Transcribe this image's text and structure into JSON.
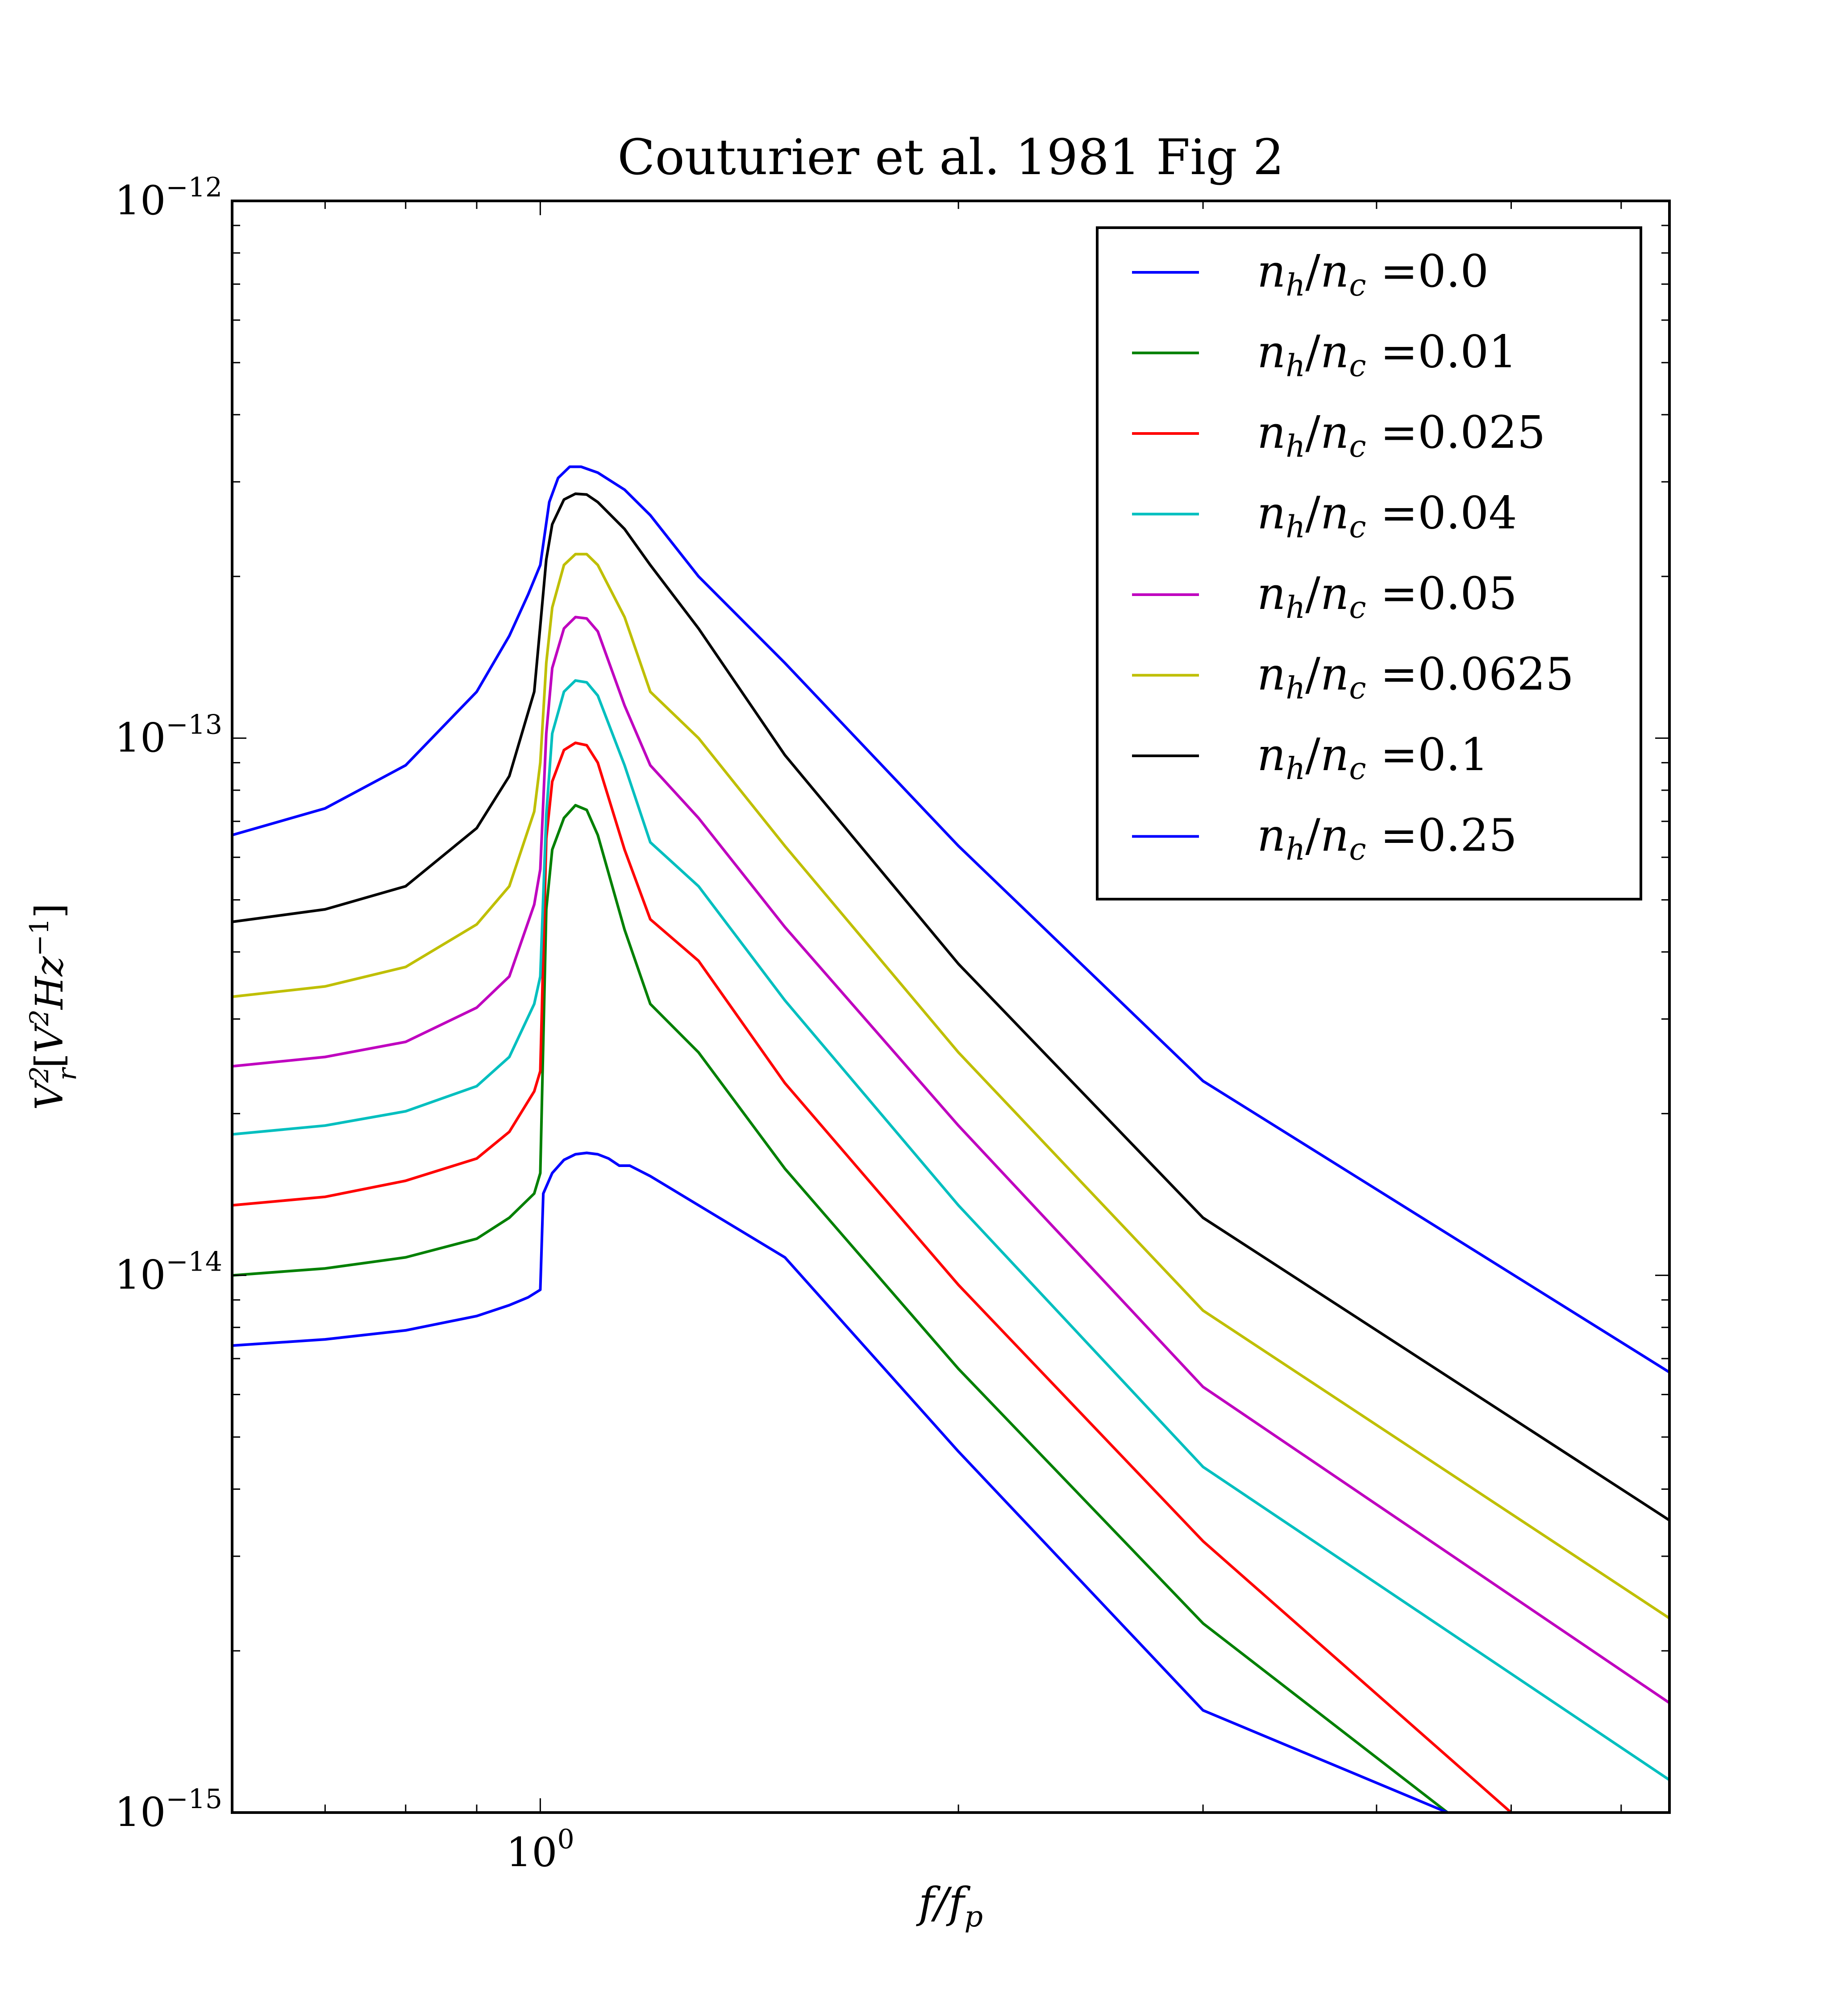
{
  "chart_data": {
    "type": "line",
    "title": "Couturier et al. 1981 Fig 2",
    "xlabel": "f/f_p",
    "ylabel": "V_r^2 [V^2 Hz^-1]",
    "xscale": "log",
    "yscale": "log",
    "xlim": [
      0.6,
      6.5
    ],
    "ylim": [
      1e-15,
      1e-12
    ],
    "xticks": [
      {
        "value": 1,
        "label": "10^0"
      }
    ],
    "yticks": [
      {
        "value": 1e-15,
        "label": "10^-15"
      },
      {
        "value": 1e-14,
        "label": "10^-14"
      },
      {
        "value": 1e-13,
        "label": "10^-13"
      },
      {
        "value": 1e-12,
        "label": "10^-12"
      }
    ],
    "grid": false,
    "legend_position": "upper-right",
    "series": [
      {
        "name": "n_h/n_c =0.0",
        "color": "#0000ff",
        "x": [
          0.6,
          0.7,
          0.8,
          0.9,
          0.95,
          0.98,
          1.0,
          1.015,
          1.03,
          1.05,
          1.07,
          1.1,
          1.15,
          1.2,
          1.3,
          1.5,
          2.0,
          3.0,
          6.5
        ],
        "y": [
          6.6e-14,
          7.4e-14,
          8.9e-14,
          1.22e-13,
          1.55e-13,
          1.85e-13,
          2.1e-13,
          2.75e-13,
          3.05e-13,
          3.2e-13,
          3.2e-13,
          3.12e-13,
          2.9e-13,
          2.6e-13,
          2e-13,
          1.38e-13,
          6.3e-14,
          2.3e-14,
          6.6e-15
        ]
      },
      {
        "name": "n_h/n_c =0.01",
        "color": "#008000",
        "x": [
          0.6,
          0.7,
          0.8,
          0.9,
          0.95,
          0.99,
          1.0,
          1.01,
          1.02,
          1.04,
          1.06,
          1.08,
          1.1,
          1.15,
          1.2,
          1.3,
          1.5,
          2.0,
          3.0,
          4.5
        ],
        "y": [
          1e-14,
          1.03e-14,
          1.08e-14,
          1.17e-14,
          1.28e-14,
          1.42e-14,
          1.55e-14,
          4.8e-14,
          6.2e-14,
          7.1e-14,
          7.5e-14,
          7.35e-14,
          6.6e-14,
          4.4e-14,
          3.2e-14,
          2.6e-14,
          1.58e-14,
          6.7e-15,
          2.25e-15,
          1e-15
        ]
      },
      {
        "name": "n_h/n_c =0.025",
        "color": "#ff0000",
        "x": [
          0.6,
          0.7,
          0.8,
          0.9,
          0.95,
          0.99,
          1.0,
          1.01,
          1.02,
          1.04,
          1.06,
          1.08,
          1.1,
          1.15,
          1.2,
          1.3,
          1.5,
          2.0,
          3.0,
          5.0
        ],
        "y": [
          1.35e-14,
          1.4e-14,
          1.5e-14,
          1.65e-14,
          1.85e-14,
          2.2e-14,
          2.4e-14,
          6.5e-14,
          8.3e-14,
          9.5e-14,
          9.8e-14,
          9.7e-14,
          9e-14,
          6.2e-14,
          4.6e-14,
          3.85e-14,
          2.28e-14,
          9.6e-15,
          3.2e-15,
          1e-15
        ]
      },
      {
        "name": "n_h/n_c =0.04",
        "color": "#00bfbf",
        "x": [
          0.6,
          0.7,
          0.8,
          0.9,
          0.95,
          0.99,
          1.0,
          1.01,
          1.02,
          1.04,
          1.06,
          1.08,
          1.1,
          1.15,
          1.2,
          1.3,
          1.5,
          2.0,
          3.0,
          6.5
        ],
        "y": [
          1.83e-14,
          1.9e-14,
          2.02e-14,
          2.25e-14,
          2.55e-14,
          3.2e-14,
          3.6e-14,
          7.2e-14,
          1.02e-13,
          1.22e-13,
          1.28e-13,
          1.27e-13,
          1.2e-13,
          8.9e-14,
          6.4e-14,
          5.3e-14,
          3.25e-14,
          1.35e-14,
          4.4e-15,
          1.15e-15
        ]
      },
      {
        "name": "n_h/n_c =0.05",
        "color": "#bf00bf",
        "x": [
          0.6,
          0.7,
          0.8,
          0.9,
          0.95,
          0.99,
          1.0,
          1.01,
          1.02,
          1.04,
          1.06,
          1.08,
          1.1,
          1.15,
          1.2,
          1.3,
          1.5,
          2.0,
          3.0,
          6.5
        ],
        "y": [
          2.45e-14,
          2.55e-14,
          2.72e-14,
          3.15e-14,
          3.6e-14,
          4.9e-14,
          5.7e-14,
          1.02e-13,
          1.35e-13,
          1.6e-13,
          1.68e-13,
          1.67e-13,
          1.58e-13,
          1.15e-13,
          8.9e-14,
          7.1e-14,
          4.45e-14,
          1.9e-14,
          6.2e-15,
          1.6e-15
        ]
      },
      {
        "name": "n_h/n_c =0.0625",
        "color": "#bfbf00",
        "x": [
          0.6,
          0.7,
          0.8,
          0.9,
          0.95,
          0.99,
          1.0,
          1.01,
          1.02,
          1.04,
          1.06,
          1.08,
          1.1,
          1.15,
          1.2,
          1.3,
          1.5,
          2.0,
          3.0,
          6.5
        ],
        "y": [
          3.3e-14,
          3.45e-14,
          3.75e-14,
          4.5e-14,
          5.3e-14,
          7.3e-14,
          9e-14,
          1.38e-13,
          1.75e-13,
          2.1e-13,
          2.2e-13,
          2.2e-13,
          2.1e-13,
          1.68e-13,
          1.22e-13,
          1e-13,
          6.3e-14,
          2.6e-14,
          8.6e-15,
          2.3e-15
        ]
      },
      {
        "name": "n_h/n_c =0.1",
        "color": "#000000",
        "x": [
          0.6,
          0.7,
          0.8,
          0.9,
          0.95,
          0.99,
          1.0,
          1.01,
          1.02,
          1.04,
          1.06,
          1.08,
          1.1,
          1.15,
          1.2,
          1.3,
          1.5,
          2.0,
          3.0,
          6.5
        ],
        "y": [
          4.55e-14,
          4.8e-14,
          5.3e-14,
          6.8e-14,
          8.5e-14,
          1.22e-13,
          1.62e-13,
          2.15e-13,
          2.5e-13,
          2.78e-13,
          2.85e-13,
          2.84e-13,
          2.75e-13,
          2.45e-13,
          2.1e-13,
          1.6e-13,
          9.3e-14,
          3.8e-14,
          1.28e-14,
          3.5e-15
        ]
      },
      {
        "name": "n_h/n_c =0.25",
        "color": "#0000ff",
        "x": [
          0.6,
          0.7,
          0.8,
          0.9,
          0.95,
          0.98,
          1.0,
          1.005,
          1.02,
          1.04,
          1.06,
          1.08,
          1.1,
          1.12,
          1.14,
          1.16,
          1.2,
          1.5,
          2.0,
          3.0,
          4.5
        ],
        "y": [
          7.4e-15,
          7.6e-15,
          7.9e-15,
          8.4e-15,
          8.8e-15,
          9.1e-15,
          9.4e-15,
          1.42e-14,
          1.55e-14,
          1.64e-14,
          1.68e-14,
          1.69e-14,
          1.68e-14,
          1.65e-14,
          1.6e-14,
          1.6e-14,
          1.53e-14,
          1.08e-14,
          4.7e-15,
          1.55e-15,
          1e-15
        ]
      }
    ]
  }
}
